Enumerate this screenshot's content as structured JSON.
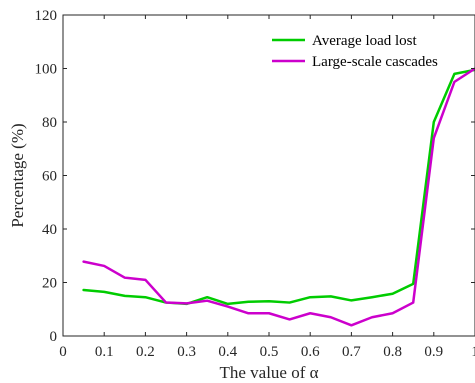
{
  "chart_data": {
    "type": "line",
    "xlabel": "The value of α",
    "ylabel": "Percentage (%)",
    "xlim": [
      0,
      1
    ],
    "ylim": [
      0,
      120
    ],
    "xticks": [
      0,
      0.1,
      0.2,
      0.3,
      0.4,
      0.5,
      0.6,
      0.7,
      0.8,
      0.9,
      1
    ],
    "xtick_labels": [
      "0",
      "0.1",
      "0.2",
      "0.3",
      "0.4",
      "0.5",
      "0.6",
      "0.7",
      "0.8",
      "0.9",
      "1"
    ],
    "yticks": [
      0,
      20,
      40,
      60,
      80,
      100,
      120
    ],
    "ytick_labels": [
      "0",
      "20",
      "40",
      "60",
      "80",
      "100",
      "120"
    ],
    "grid": false,
    "legend_position": "top-right",
    "x": [
      0.05,
      0.1,
      0.15,
      0.2,
      0.25,
      0.3,
      0.35,
      0.4,
      0.45,
      0.5,
      0.55,
      0.6,
      0.65,
      0.7,
      0.75,
      0.8,
      0.85,
      0.9,
      0.95,
      1.0
    ],
    "series": [
      {
        "name": "Average load lost",
        "color": "#00cc00",
        "values": [
          17.2,
          16.5,
          15.0,
          14.5,
          12.5,
          12.0,
          14.5,
          12.0,
          12.8,
          13.0,
          12.5,
          14.5,
          14.8,
          13.3,
          14.5,
          15.8,
          19.5,
          80.0,
          98.0,
          99.5
        ]
      },
      {
        "name": "Large-scale cascades",
        "color": "#cc00cc",
        "values": [
          27.8,
          26.2,
          21.8,
          21.0,
          12.5,
          12.2,
          13.2,
          11.0,
          8.5,
          8.5,
          6.2,
          8.5,
          7.0,
          4.0,
          7.0,
          8.5,
          12.5,
          74.0,
          95.0,
          100.0
        ]
      }
    ]
  }
}
